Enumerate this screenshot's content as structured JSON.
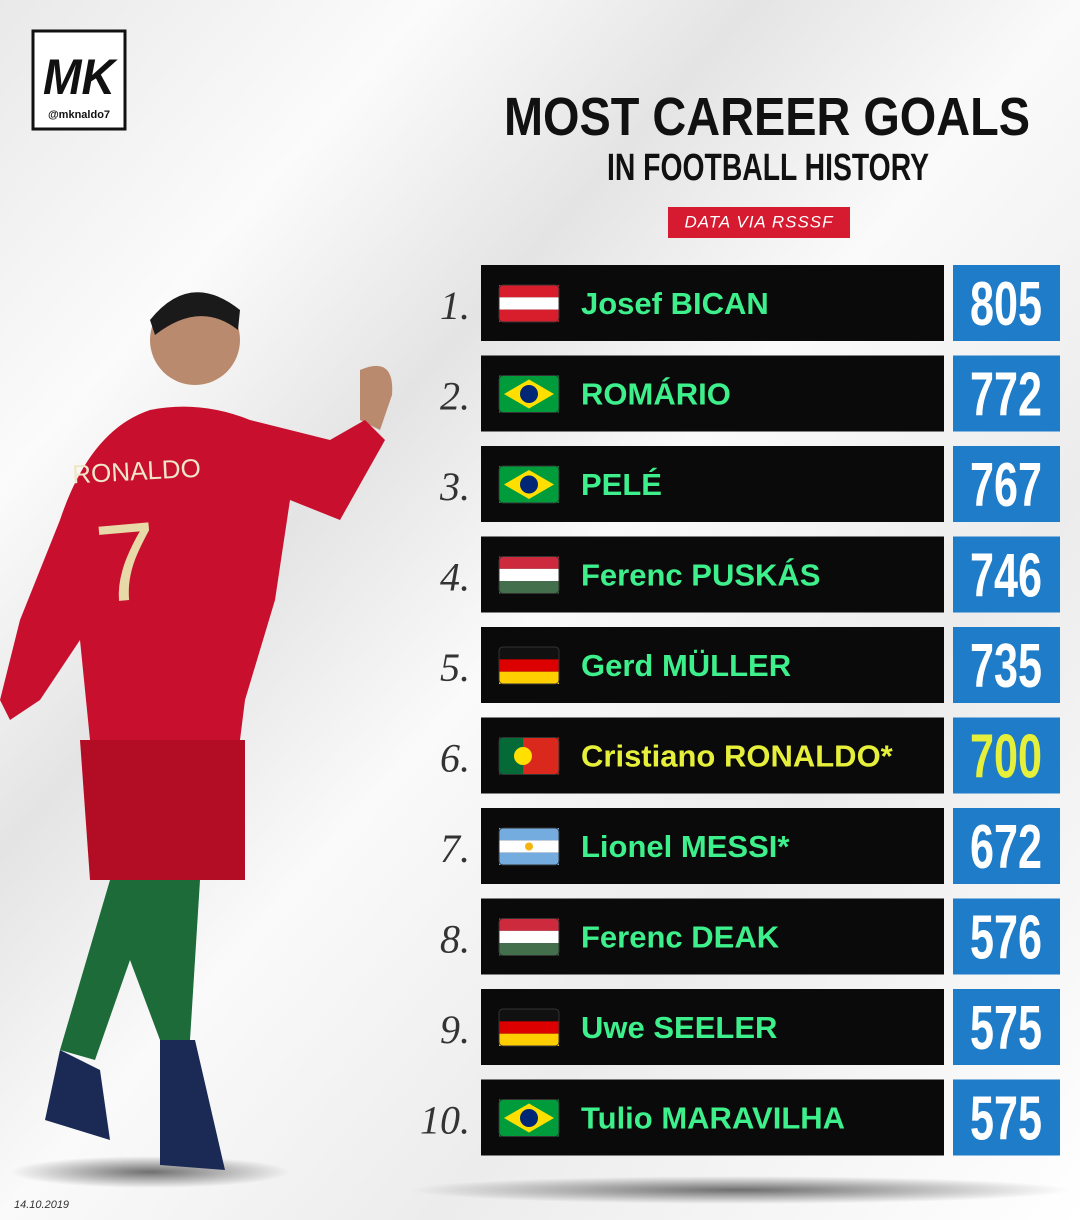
{
  "logo": {
    "mark": "MK",
    "handle": "@mknaldo7"
  },
  "header": {
    "title": "MOST CAREER GOALS",
    "subtitle": "IN FOOTBALL HISTORY",
    "source": "DATA VIA RSSSF"
  },
  "jersey": {
    "name": "RONALDO",
    "number": "7"
  },
  "table": {
    "rows": [
      {
        "rank": "1.",
        "name": "Josef BICAN",
        "goals": 805,
        "color": "#3df08c",
        "value_color": "#ffffff"
      },
      {
        "rank": "2.",
        "name": "ROMÁRIO",
        "goals": 772,
        "color": "#3df08c",
        "value_color": "#ffffff"
      },
      {
        "rank": "3.",
        "name": "PELÉ",
        "goals": 767,
        "color": "#3df08c",
        "value_color": "#ffffff"
      },
      {
        "rank": "4.",
        "name": "Ferenc PUSKÁS",
        "goals": 746,
        "color": "#3df08c",
        "value_color": "#ffffff"
      },
      {
        "rank": "5.",
        "name": "Gerd MÜLLER",
        "goals": 735,
        "color": "#3df08c",
        "value_color": "#ffffff"
      },
      {
        "rank": "6.",
        "name": "Cristiano RONALDO*",
        "goals": 700,
        "color": "#e6f03a",
        "value_color": "#e6f03a"
      },
      {
        "rank": "7.",
        "name": "Lionel MESSI*",
        "goals": 672,
        "color": "#3df08c",
        "value_color": "#ffffff"
      },
      {
        "rank": "8.",
        "name": "Ferenc DEAK",
        "goals": 576,
        "color": "#3df08c",
        "value_color": "#ffffff"
      },
      {
        "rank": "9.",
        "name": "Uwe SEELER",
        "goals": 575,
        "color": "#3df08c",
        "value_color": "#ffffff"
      },
      {
        "rank": "10.",
        "name": "Tulio MARAVILHA",
        "goals": 575,
        "color": "#3df08c",
        "value_color": "#ffffff"
      }
    ]
  },
  "footer": {
    "date": "14.10.2019"
  }
}
